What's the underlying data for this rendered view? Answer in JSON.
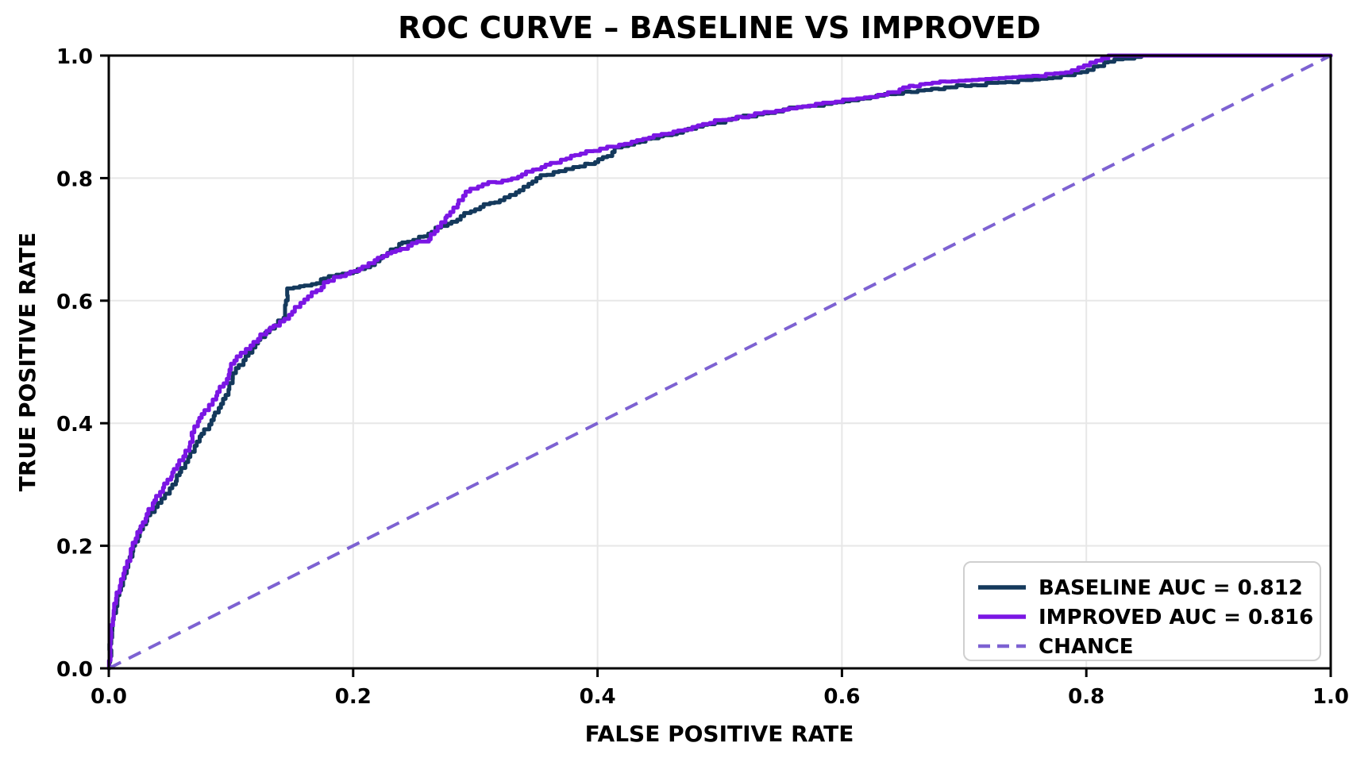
{
  "chart_data": {
    "type": "line",
    "title": "ROC CURVE – BASELINE VS IMPROVED",
    "xlabel": "FALSE POSITIVE RATE",
    "ylabel": "TRUE POSITIVE RATE",
    "xlim": [
      0.0,
      1.0
    ],
    "ylim": [
      0.0,
      1.0
    ],
    "x_ticks": [
      0.0,
      0.2,
      0.4,
      0.6,
      0.8,
      1.0
    ],
    "y_ticks": [
      0.0,
      0.2,
      0.4,
      0.6,
      0.8,
      1.0
    ],
    "x_tick_labels": [
      "0.0",
      "0.2",
      "0.4",
      "0.6",
      "0.8",
      "1.0"
    ],
    "y_tick_labels": [
      "0.0",
      "0.2",
      "0.4",
      "0.6",
      "0.8",
      "1.0"
    ],
    "grid": true,
    "legend_position": "lower right",
    "series": [
      {
        "id": "baseline",
        "name": "BASELINE AUC = 0.812",
        "auc": 0.812,
        "color": "#14395c",
        "style": "solid",
        "points": [
          [
            0.0,
            0.0
          ],
          [
            0.002,
            0.05
          ],
          [
            0.004,
            0.09
          ],
          [
            0.007,
            0.11
          ],
          [
            0.01,
            0.135
          ],
          [
            0.013,
            0.155
          ],
          [
            0.016,
            0.175
          ],
          [
            0.02,
            0.2
          ],
          [
            0.024,
            0.215
          ],
          [
            0.028,
            0.235
          ],
          [
            0.034,
            0.255
          ],
          [
            0.04,
            0.27
          ],
          [
            0.046,
            0.285
          ],
          [
            0.052,
            0.3
          ],
          [
            0.058,
            0.32
          ],
          [
            0.065,
            0.345
          ],
          [
            0.072,
            0.37
          ],
          [
            0.078,
            0.39
          ],
          [
            0.084,
            0.405
          ],
          [
            0.09,
            0.425
          ],
          [
            0.098,
            0.455
          ],
          [
            0.104,
            0.49
          ],
          [
            0.112,
            0.51
          ],
          [
            0.12,
            0.53
          ],
          [
            0.128,
            0.548
          ],
          [
            0.136,
            0.56
          ],
          [
            0.143,
            0.572
          ],
          [
            0.146,
            0.62
          ],
          [
            0.166,
            0.627
          ],
          [
            0.18,
            0.64
          ],
          [
            0.2,
            0.647
          ],
          [
            0.214,
            0.658
          ],
          [
            0.228,
            0.678
          ],
          [
            0.24,
            0.695
          ],
          [
            0.258,
            0.705
          ],
          [
            0.272,
            0.722
          ],
          [
            0.288,
            0.738
          ],
          [
            0.304,
            0.753
          ],
          [
            0.32,
            0.764
          ],
          [
            0.336,
            0.78
          ],
          [
            0.35,
            0.8
          ],
          [
            0.364,
            0.81
          ],
          [
            0.38,
            0.818
          ],
          [
            0.398,
            0.826
          ],
          [
            0.408,
            0.836
          ],
          [
            0.414,
            0.85
          ],
          [
            0.43,
            0.858
          ],
          [
            0.45,
            0.868
          ],
          [
            0.47,
            0.878
          ],
          [
            0.49,
            0.888
          ],
          [
            0.51,
            0.897
          ],
          [
            0.53,
            0.904
          ],
          [
            0.552,
            0.912
          ],
          [
            0.574,
            0.918
          ],
          [
            0.596,
            0.924
          ],
          [
            0.618,
            0.93
          ],
          [
            0.64,
            0.937
          ],
          [
            0.662,
            0.943
          ],
          [
            0.684,
            0.948
          ],
          [
            0.706,
            0.952
          ],
          [
            0.728,
            0.956
          ],
          [
            0.75,
            0.96
          ],
          [
            0.768,
            0.963
          ],
          [
            0.784,
            0.968
          ],
          [
            0.796,
            0.973
          ],
          [
            0.806,
            0.982
          ],
          [
            0.818,
            0.99
          ],
          [
            0.83,
            0.995
          ],
          [
            0.845,
            1.0
          ],
          [
            1.0,
            1.0
          ]
        ]
      },
      {
        "id": "improved",
        "name": "IMPROVED AUC = 0.816",
        "auc": 0.816,
        "color": "#7b16e4",
        "style": "solid",
        "points": [
          [
            0.0,
            0.0
          ],
          [
            0.002,
            0.06
          ],
          [
            0.004,
            0.095
          ],
          [
            0.006,
            0.115
          ],
          [
            0.009,
            0.135
          ],
          [
            0.012,
            0.155
          ],
          [
            0.015,
            0.175
          ],
          [
            0.018,
            0.195
          ],
          [
            0.022,
            0.212
          ],
          [
            0.026,
            0.232
          ],
          [
            0.031,
            0.252
          ],
          [
            0.036,
            0.27
          ],
          [
            0.042,
            0.288
          ],
          [
            0.048,
            0.308
          ],
          [
            0.052,
            0.32
          ],
          [
            0.056,
            0.332
          ],
          [
            0.061,
            0.346
          ],
          [
            0.066,
            0.362
          ],
          [
            0.07,
            0.395
          ],
          [
            0.076,
            0.415
          ],
          [
            0.082,
            0.43
          ],
          [
            0.088,
            0.445
          ],
          [
            0.094,
            0.465
          ],
          [
            0.1,
            0.497
          ],
          [
            0.108,
            0.515
          ],
          [
            0.116,
            0.527
          ],
          [
            0.124,
            0.545
          ],
          [
            0.132,
            0.556
          ],
          [
            0.14,
            0.566
          ],
          [
            0.15,
            0.582
          ],
          [
            0.16,
            0.602
          ],
          [
            0.17,
            0.617
          ],
          [
            0.176,
            0.63
          ],
          [
            0.19,
            0.64
          ],
          [
            0.205,
            0.652
          ],
          [
            0.22,
            0.67
          ],
          [
            0.235,
            0.682
          ],
          [
            0.248,
            0.694
          ],
          [
            0.262,
            0.7
          ],
          [
            0.272,
            0.728
          ],
          [
            0.282,
            0.752
          ],
          [
            0.292,
            0.778
          ],
          [
            0.306,
            0.79
          ],
          [
            0.322,
            0.796
          ],
          [
            0.338,
            0.806
          ],
          [
            0.354,
            0.818
          ],
          [
            0.37,
            0.83
          ],
          [
            0.386,
            0.84
          ],
          [
            0.402,
            0.848
          ],
          [
            0.422,
            0.856
          ],
          [
            0.442,
            0.866
          ],
          [
            0.462,
            0.876
          ],
          [
            0.482,
            0.886
          ],
          [
            0.502,
            0.895
          ],
          [
            0.524,
            0.902
          ],
          [
            0.546,
            0.91
          ],
          [
            0.568,
            0.917
          ],
          [
            0.59,
            0.923
          ],
          [
            0.612,
            0.93
          ],
          [
            0.634,
            0.936
          ],
          [
            0.65,
            0.948
          ],
          [
            0.668,
            0.954
          ],
          [
            0.69,
            0.958
          ],
          [
            0.712,
            0.961
          ],
          [
            0.734,
            0.964
          ],
          [
            0.756,
            0.967
          ],
          [
            0.774,
            0.971
          ],
          [
            0.788,
            0.976
          ],
          [
            0.798,
            0.984
          ],
          [
            0.808,
            0.992
          ],
          [
            0.818,
            1.0
          ],
          [
            1.0,
            1.0
          ]
        ]
      },
      {
        "id": "chance",
        "name": "CHANCE",
        "color": "#7d62d2",
        "style": "dashed",
        "points": [
          [
            0.0,
            0.0
          ],
          [
            1.0,
            1.0
          ]
        ]
      }
    ]
  },
  "colors": {
    "background": "#ffffff",
    "grid": "#e7e7e7",
    "spine": "#000000",
    "text": "#000000",
    "legend_border": "#cfcfcf",
    "legend_fill": "#ffffff"
  }
}
